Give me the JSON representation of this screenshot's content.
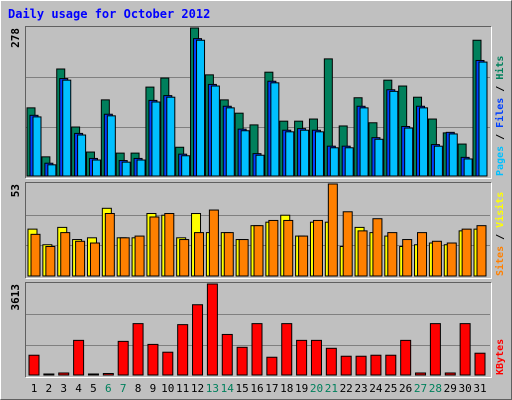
{
  "chart_data": {
    "title": "Daily usage for October 2012",
    "categories": [
      "1",
      "2",
      "3",
      "4",
      "5",
      "6",
      "7",
      "8",
      "9",
      "10",
      "11",
      "12",
      "13",
      "14",
      "15",
      "16",
      "17",
      "18",
      "19",
      "20",
      "21",
      "22",
      "23",
      "24",
      "25",
      "26",
      "27",
      "28",
      "29",
      "30",
      "31"
    ],
    "category_color": "#000000",
    "weekend_color": "#00805c",
    "weekend": [
      5,
      6,
      12,
      13,
      19,
      20,
      26,
      27
    ],
    "legend_separator": " / ",
    "panels": [
      {
        "type": "bar",
        "ylim": [
          0,
          278
        ],
        "yticks": [
          278
        ],
        "series": [
          {
            "name": "Hits",
            "color": "#00805c",
            "values": [
              128,
              36,
              201,
              92,
              45,
              143,
              43,
              43,
              167,
              184,
              54,
              278,
              190,
              143,
              118,
              96,
              195,
              103,
              103,
              107,
              220,
              94,
              147,
              100,
              180,
              169,
              148,
              107,
              81,
              60,
              255
            ]
          },
          {
            "name": "Files",
            "color": "#0040ff",
            "values": [
              114,
              24,
              183,
              80,
              33,
              116,
              29,
              33,
              142,
              151,
              41,
              258,
              172,
              131,
              88,
              42,
              178,
              86,
              89,
              86,
              56,
              56,
              131,
              72,
              162,
              93,
              131,
              59,
              82,
              35,
              217
            ]
          },
          {
            "name": "Pages",
            "color": "#00c0ff",
            "values": [
              111,
              21,
              180,
              77,
              30,
              113,
              26,
              30,
              139,
              148,
              38,
              255,
              169,
              128,
              85,
              39,
              175,
              83,
              86,
              83,
              53,
              53,
              128,
              69,
              159,
              90,
              128,
              56,
              79,
              32,
              214
            ]
          }
        ]
      },
      {
        "type": "bar",
        "ylim": [
          0,
          53
        ],
        "yticks": [
          53
        ],
        "series": [
          {
            "name": "Visits",
            "color": "#ffff00",
            "values": [
              27,
              18,
              28,
              21,
              22,
              39,
              22,
              22,
              36,
              35,
              22,
              36,
              25,
              25,
              21,
              29,
              31,
              35,
              23,
              31,
              31,
              17,
              28,
              25,
              23,
              17,
              18,
              19,
              18,
              26,
              27
            ]
          },
          {
            "name": "Sites",
            "color": "#ff8000",
            "values": [
              24,
              17,
              25,
              20,
              19,
              36,
              22,
              23,
              34,
              36,
              21,
              25,
              38,
              25,
              21,
              29,
              32,
              32,
              23,
              32,
              53,
              37,
              26,
              33,
              25,
              21,
              25,
              20,
              19,
              27,
              29
            ]
          }
        ]
      },
      {
        "type": "bar",
        "ylim": [
          0,
          3613
        ],
        "yticks": [
          3613
        ],
        "series": [
          {
            "name": "KBytes",
            "color": "#ff0000",
            "values": [
              785,
              40,
              80,
              1375,
              40,
              60,
              1335,
              2040,
              1215,
              905,
              2000,
              2790,
              3613,
              1610,
              1100,
              2040,
              705,
              2040,
              1375,
              1375,
              1060,
              745,
              745,
              785,
              785,
              1375,
              80,
              2040,
              80,
              2040,
              865
            ]
          }
        ]
      }
    ]
  }
}
